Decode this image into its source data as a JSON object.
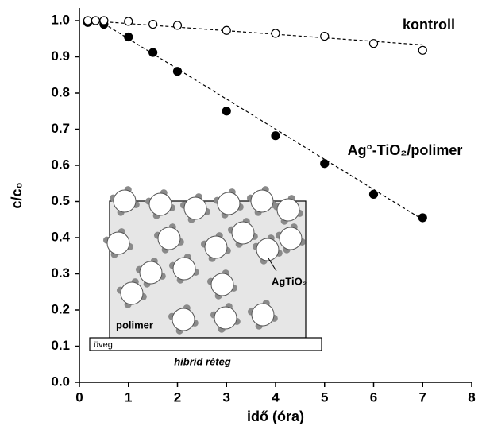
{
  "chart_data": {
    "type": "scatter",
    "xlabel": "idő (óra)",
    "ylabel": "c/c₀",
    "xlim": [
      0,
      8
    ],
    "xticks": [
      0,
      1,
      2,
      3,
      4,
      5,
      6,
      7,
      8
    ],
    "ylim": [
      0,
      1
    ],
    "yticks": [
      {
        "value": 0,
        "label": "0.0"
      },
      0.1,
      0.2,
      0.3,
      0.4,
      0.5,
      0.6,
      0.7,
      0.8,
      0.9,
      {
        "value": 1,
        "label": "1.0"
      }
    ],
    "series": [
      {
        "name": "Ag°-TiO₂/polimer",
        "color": "#000000",
        "marker": "filled",
        "x": [
          0.17,
          0.5,
          1,
          1.5,
          2,
          3,
          4,
          5,
          6,
          7
        ],
        "values": [
          0.995,
          0.99,
          0.955,
          0.912,
          0.86,
          0.75,
          0.682,
          0.605,
          0.52,
          0.455
        ],
        "fit": {
          "x": [
            0.4,
            7
          ],
          "y": [
            1.0,
            0.45
          ]
        }
      },
      {
        "name": "kontroll",
        "color": "#000000",
        "marker": "open",
        "x": [
          0.17,
          0.33,
          0.5,
          1,
          1.5,
          2,
          3,
          4,
          5,
          6,
          7
        ],
        "values": [
          1.0,
          1.0,
          1.0,
          0.998,
          0.99,
          0.987,
          0.973,
          0.965,
          0.957,
          0.937,
          0.918
        ],
        "fit": {
          "x": [
            0.17,
            7
          ],
          "y": [
            1.0,
            0.933
          ]
        }
      }
    ]
  },
  "inset": {
    "matrix": "polimer",
    "substrate": "üveg",
    "particle": "AgTiO₂",
    "caption": "hibrid réteg"
  }
}
